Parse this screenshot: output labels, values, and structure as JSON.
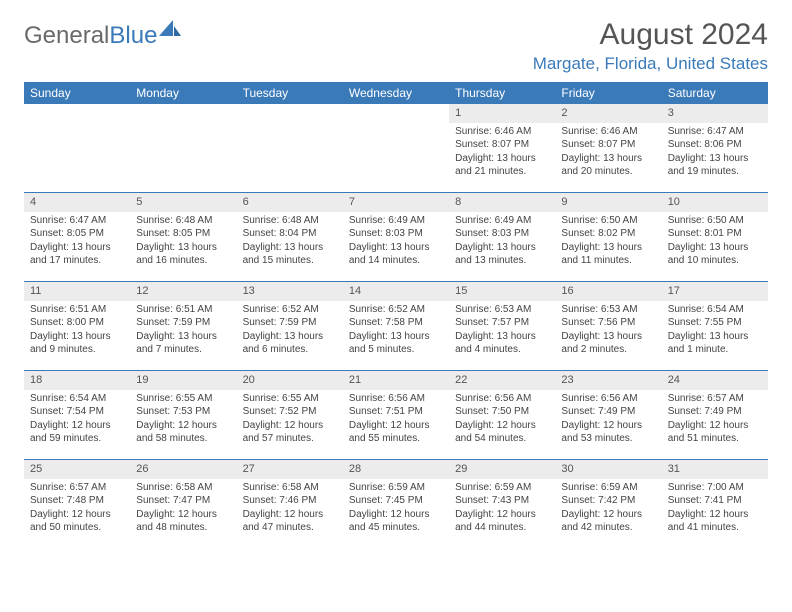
{
  "brand": {
    "part1": "General",
    "part2": "Blue"
  },
  "title": "August 2024",
  "location": "Margate, Florida, United States",
  "colors": {
    "header_bg": "#3a7ab8",
    "header_text": "#ffffff",
    "daynum_bg": "#ececec",
    "rule": "#3a7ab8",
    "title_text": "#555555",
    "body_text": "#444444",
    "logo_gray": "#6a6a6a",
    "logo_blue": "#3a7ab8"
  },
  "weekdays": [
    "Sunday",
    "Monday",
    "Tuesday",
    "Wednesday",
    "Thursday",
    "Friday",
    "Saturday"
  ],
  "weeks": [
    [
      {
        "n": "",
        "sr": "",
        "ss": "",
        "dl1": "",
        "dl2": ""
      },
      {
        "n": "",
        "sr": "",
        "ss": "",
        "dl1": "",
        "dl2": ""
      },
      {
        "n": "",
        "sr": "",
        "ss": "",
        "dl1": "",
        "dl2": ""
      },
      {
        "n": "",
        "sr": "",
        "ss": "",
        "dl1": "",
        "dl2": ""
      },
      {
        "n": "1",
        "sr": "Sunrise: 6:46 AM",
        "ss": "Sunset: 8:07 PM",
        "dl1": "Daylight: 13 hours",
        "dl2": "and 21 minutes."
      },
      {
        "n": "2",
        "sr": "Sunrise: 6:46 AM",
        "ss": "Sunset: 8:07 PM",
        "dl1": "Daylight: 13 hours",
        "dl2": "and 20 minutes."
      },
      {
        "n": "3",
        "sr": "Sunrise: 6:47 AM",
        "ss": "Sunset: 8:06 PM",
        "dl1": "Daylight: 13 hours",
        "dl2": "and 19 minutes."
      }
    ],
    [
      {
        "n": "4",
        "sr": "Sunrise: 6:47 AM",
        "ss": "Sunset: 8:05 PM",
        "dl1": "Daylight: 13 hours",
        "dl2": "and 17 minutes."
      },
      {
        "n": "5",
        "sr": "Sunrise: 6:48 AM",
        "ss": "Sunset: 8:05 PM",
        "dl1": "Daylight: 13 hours",
        "dl2": "and 16 minutes."
      },
      {
        "n": "6",
        "sr": "Sunrise: 6:48 AM",
        "ss": "Sunset: 8:04 PM",
        "dl1": "Daylight: 13 hours",
        "dl2": "and 15 minutes."
      },
      {
        "n": "7",
        "sr": "Sunrise: 6:49 AM",
        "ss": "Sunset: 8:03 PM",
        "dl1": "Daylight: 13 hours",
        "dl2": "and 14 minutes."
      },
      {
        "n": "8",
        "sr": "Sunrise: 6:49 AM",
        "ss": "Sunset: 8:03 PM",
        "dl1": "Daylight: 13 hours",
        "dl2": "and 13 minutes."
      },
      {
        "n": "9",
        "sr": "Sunrise: 6:50 AM",
        "ss": "Sunset: 8:02 PM",
        "dl1": "Daylight: 13 hours",
        "dl2": "and 11 minutes."
      },
      {
        "n": "10",
        "sr": "Sunrise: 6:50 AM",
        "ss": "Sunset: 8:01 PM",
        "dl1": "Daylight: 13 hours",
        "dl2": "and 10 minutes."
      }
    ],
    [
      {
        "n": "11",
        "sr": "Sunrise: 6:51 AM",
        "ss": "Sunset: 8:00 PM",
        "dl1": "Daylight: 13 hours",
        "dl2": "and 9 minutes."
      },
      {
        "n": "12",
        "sr": "Sunrise: 6:51 AM",
        "ss": "Sunset: 7:59 PM",
        "dl1": "Daylight: 13 hours",
        "dl2": "and 7 minutes."
      },
      {
        "n": "13",
        "sr": "Sunrise: 6:52 AM",
        "ss": "Sunset: 7:59 PM",
        "dl1": "Daylight: 13 hours",
        "dl2": "and 6 minutes."
      },
      {
        "n": "14",
        "sr": "Sunrise: 6:52 AM",
        "ss": "Sunset: 7:58 PM",
        "dl1": "Daylight: 13 hours",
        "dl2": "and 5 minutes."
      },
      {
        "n": "15",
        "sr": "Sunrise: 6:53 AM",
        "ss": "Sunset: 7:57 PM",
        "dl1": "Daylight: 13 hours",
        "dl2": "and 4 minutes."
      },
      {
        "n": "16",
        "sr": "Sunrise: 6:53 AM",
        "ss": "Sunset: 7:56 PM",
        "dl1": "Daylight: 13 hours",
        "dl2": "and 2 minutes."
      },
      {
        "n": "17",
        "sr": "Sunrise: 6:54 AM",
        "ss": "Sunset: 7:55 PM",
        "dl1": "Daylight: 13 hours",
        "dl2": "and 1 minute."
      }
    ],
    [
      {
        "n": "18",
        "sr": "Sunrise: 6:54 AM",
        "ss": "Sunset: 7:54 PM",
        "dl1": "Daylight: 12 hours",
        "dl2": "and 59 minutes."
      },
      {
        "n": "19",
        "sr": "Sunrise: 6:55 AM",
        "ss": "Sunset: 7:53 PM",
        "dl1": "Daylight: 12 hours",
        "dl2": "and 58 minutes."
      },
      {
        "n": "20",
        "sr": "Sunrise: 6:55 AM",
        "ss": "Sunset: 7:52 PM",
        "dl1": "Daylight: 12 hours",
        "dl2": "and 57 minutes."
      },
      {
        "n": "21",
        "sr": "Sunrise: 6:56 AM",
        "ss": "Sunset: 7:51 PM",
        "dl1": "Daylight: 12 hours",
        "dl2": "and 55 minutes."
      },
      {
        "n": "22",
        "sr": "Sunrise: 6:56 AM",
        "ss": "Sunset: 7:50 PM",
        "dl1": "Daylight: 12 hours",
        "dl2": "and 54 minutes."
      },
      {
        "n": "23",
        "sr": "Sunrise: 6:56 AM",
        "ss": "Sunset: 7:49 PM",
        "dl1": "Daylight: 12 hours",
        "dl2": "and 53 minutes."
      },
      {
        "n": "24",
        "sr": "Sunrise: 6:57 AM",
        "ss": "Sunset: 7:49 PM",
        "dl1": "Daylight: 12 hours",
        "dl2": "and 51 minutes."
      }
    ],
    [
      {
        "n": "25",
        "sr": "Sunrise: 6:57 AM",
        "ss": "Sunset: 7:48 PM",
        "dl1": "Daylight: 12 hours",
        "dl2": "and 50 minutes."
      },
      {
        "n": "26",
        "sr": "Sunrise: 6:58 AM",
        "ss": "Sunset: 7:47 PM",
        "dl1": "Daylight: 12 hours",
        "dl2": "and 48 minutes."
      },
      {
        "n": "27",
        "sr": "Sunrise: 6:58 AM",
        "ss": "Sunset: 7:46 PM",
        "dl1": "Daylight: 12 hours",
        "dl2": "and 47 minutes."
      },
      {
        "n": "28",
        "sr": "Sunrise: 6:59 AM",
        "ss": "Sunset: 7:45 PM",
        "dl1": "Daylight: 12 hours",
        "dl2": "and 45 minutes."
      },
      {
        "n": "29",
        "sr": "Sunrise: 6:59 AM",
        "ss": "Sunset: 7:43 PM",
        "dl1": "Daylight: 12 hours",
        "dl2": "and 44 minutes."
      },
      {
        "n": "30",
        "sr": "Sunrise: 6:59 AM",
        "ss": "Sunset: 7:42 PM",
        "dl1": "Daylight: 12 hours",
        "dl2": "and 42 minutes."
      },
      {
        "n": "31",
        "sr": "Sunrise: 7:00 AM",
        "ss": "Sunset: 7:41 PM",
        "dl1": "Daylight: 12 hours",
        "dl2": "and 41 minutes."
      }
    ]
  ]
}
